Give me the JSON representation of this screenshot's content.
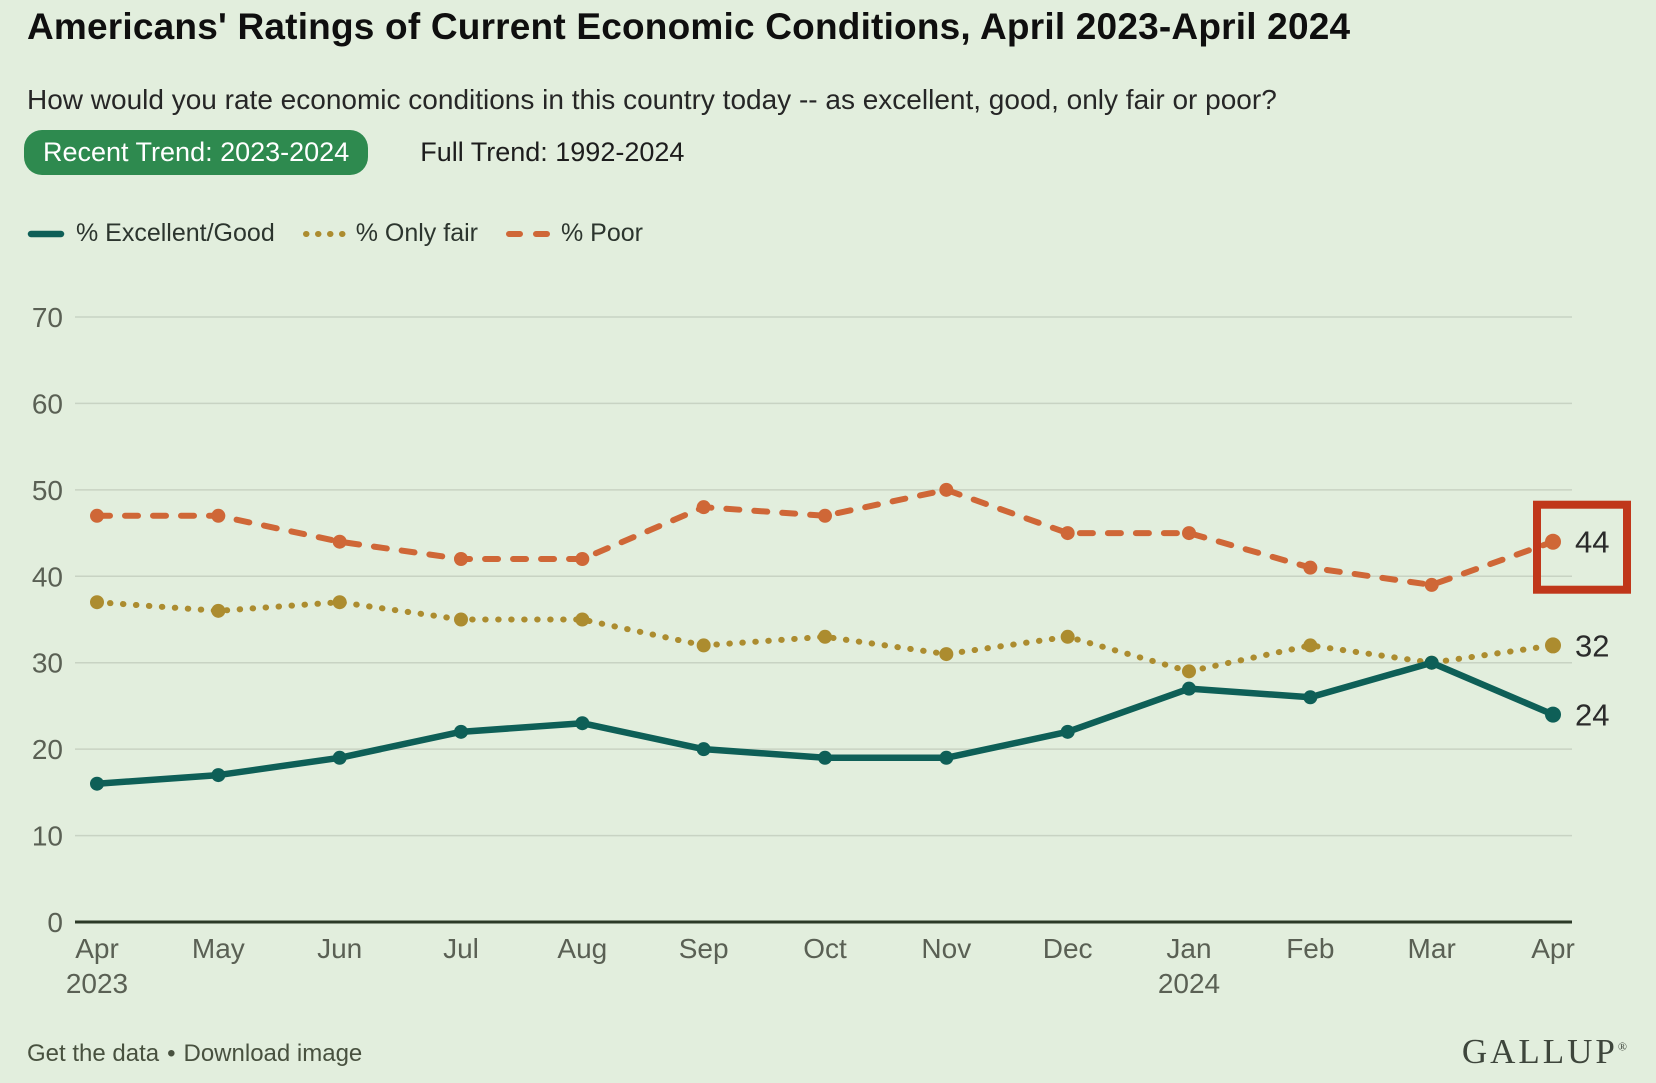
{
  "header": {
    "title": "Americans' Ratings of Current Economic Conditions, April 2023-April 2024",
    "subtitle": "How would you rate economic conditions in this country today -- as excellent, good, only fair or poor?",
    "tabs": [
      {
        "label": "Recent Trend: 2023-2024",
        "active": true
      },
      {
        "label": "Full Trend: 1992-2024",
        "active": false
      }
    ]
  },
  "chart_data": {
    "type": "line",
    "categories": [
      "Apr 2023",
      "May",
      "Jun",
      "Jul",
      "Aug",
      "Sep",
      "Oct",
      "Nov",
      "Dec",
      "Jan 2024",
      "Feb",
      "Mar",
      "Apr"
    ],
    "series": [
      {
        "name": "% Excellent/Good",
        "color": "#0e5f57",
        "style": "solid",
        "values": [
          16,
          17,
          19,
          22,
          23,
          20,
          19,
          19,
          22,
          27,
          26,
          30,
          24
        ]
      },
      {
        "name": "% Only fair",
        "color": "#ac8c2f",
        "style": "dotted",
        "values": [
          37,
          36,
          37,
          35,
          35,
          32,
          33,
          31,
          33,
          29,
          32,
          30,
          32
        ]
      },
      {
        "name": "% Poor",
        "color": "#cf6737",
        "style": "dashed",
        "values": [
          47,
          47,
          44,
          42,
          42,
          48,
          47,
          50,
          45,
          45,
          41,
          39,
          44
        ]
      }
    ],
    "title": "Americans' Ratings of Current Economic Conditions, April 2023-April 2024",
    "xlabel": "",
    "ylabel": "",
    "ylim": [
      0,
      70
    ],
    "ytick_step": 10,
    "yticks": [
      0,
      10,
      20,
      30,
      40,
      50,
      60,
      70
    ],
    "grid": true,
    "legend_position": "top-left",
    "end_labels": [
      24,
      32,
      44
    ],
    "annotation": {
      "shape": "red-box",
      "target_series": "% Poor",
      "target_category": "Apr",
      "value": 44
    }
  },
  "footer": {
    "link_get_data": "Get the data",
    "separator": "•",
    "link_download": "Download image",
    "logo": "GALLUP",
    "logo_mark": "®"
  },
  "colors": {
    "background": "#e2eedd",
    "tab_active_bg": "#2e8a4f",
    "tab_active_text": "#ffffff",
    "gridline": "#c8d3c3",
    "axis": "#2c3a28",
    "tick_label": "#5a6054",
    "end_label": "#2b2b2b",
    "annotation_box": "#c0371a"
  }
}
